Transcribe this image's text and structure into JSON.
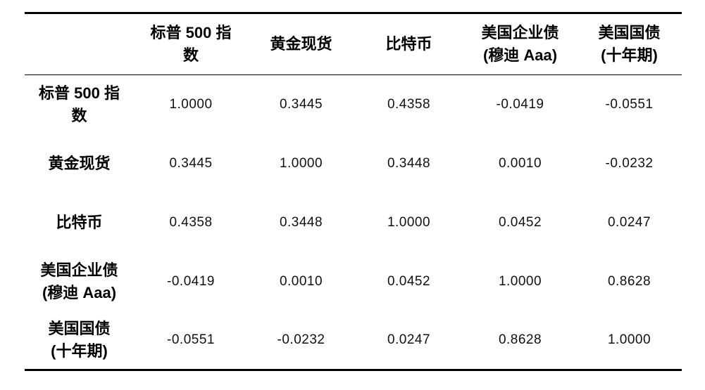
{
  "document": {
    "background_color": "#ffffff",
    "text_color": "#000000",
    "rule_color": "#000000"
  },
  "table": {
    "corner_label": "",
    "col_headers": [
      {
        "label": "标普 500 指数",
        "lines": [
          "标普 500 指",
          "数"
        ]
      },
      {
        "label": "黄金现货",
        "lines": [
          "黄金现货"
        ]
      },
      {
        "label": "比特币",
        "lines": [
          "比特币"
        ]
      },
      {
        "label": "美国企业债(穆迪 Aaa)",
        "lines": [
          "美国企业债",
          "(穆迪 Aaa)"
        ]
      },
      {
        "label": "美国国债(十年期)",
        "lines": [
          "美国国债",
          "(十年期)"
        ]
      }
    ],
    "rows": [
      {
        "label": "标普 500 指数",
        "label_lines": [
          "标普 500 指",
          "数"
        ],
        "values": [
          "1.0000",
          "0.3445",
          "0.4358",
          "-0.0419",
          "-0.0551"
        ]
      },
      {
        "label": "黄金现货",
        "label_lines": [
          "黄金现货"
        ],
        "values": [
          "0.3445",
          "1.0000",
          "0.3448",
          "0.0010",
          "-0.0232"
        ]
      },
      {
        "label": "比特币",
        "label_lines": [
          "比特币"
        ],
        "values": [
          "0.4358",
          "0.3448",
          "1.0000",
          "0.0452",
          "0.0247"
        ]
      },
      {
        "label": "美国企业债(穆迪 Aaa)",
        "label_lines": [
          "美国企业债",
          "(穆迪 Aaa)"
        ],
        "values": [
          "-0.0419",
          "0.0010",
          "0.0452",
          "1.0000",
          "0.8628"
        ]
      },
      {
        "label": "美国国债(十年期)",
        "label_lines": [
          "美国国债",
          "(十年期)"
        ],
        "values": [
          "-0.0551",
          "-0.0232",
          "0.0247",
          "0.8628",
          "1.0000"
        ]
      }
    ]
  },
  "chart_data": {
    "type": "table",
    "title": "",
    "categories": [
      "标普 500 指数",
      "黄金现货",
      "比特币",
      "美国企业债(穆迪 Aaa)",
      "美国国债(十年期)"
    ],
    "matrix": [
      [
        1.0,
        0.3445,
        0.4358,
        -0.0419,
        -0.0551
      ],
      [
        0.3445,
        1.0,
        0.3448,
        0.001,
        -0.0232
      ],
      [
        0.4358,
        0.3448,
        1.0,
        0.0452,
        0.0247
      ],
      [
        -0.0419,
        0.001,
        0.0452,
        1.0,
        0.8628
      ],
      [
        -0.0551,
        -0.0232,
        0.0247,
        0.8628,
        1.0
      ]
    ]
  }
}
